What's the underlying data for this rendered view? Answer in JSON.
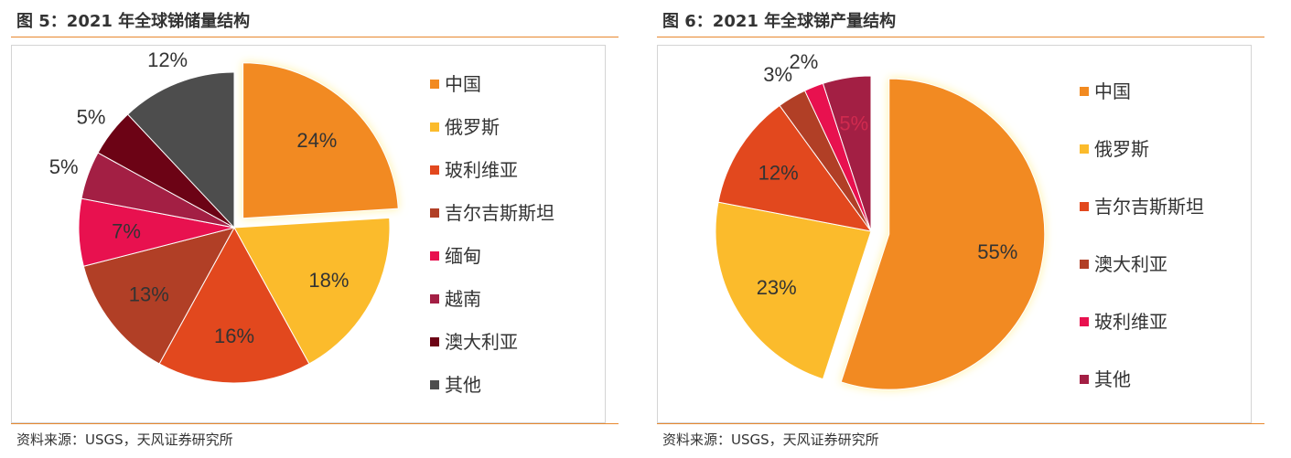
{
  "figures": [
    {
      "title": "图 5：2021 年全球锑储量结构",
      "source": "资料来源：USGS，天风证券研究所"
    },
    {
      "title": "图 6：2021 年全球锑产量结构",
      "source": "资料来源：USGS，天风证券研究所"
    }
  ],
  "chart_data": [
    {
      "type": "pie",
      "title": "",
      "categories": [
        "中国",
        "俄罗斯",
        "玻利维亚",
        "吉尔吉斯斯坦",
        "缅甸",
        "越南",
        "澳大利亚",
        "其他"
      ],
      "values": [
        24,
        18,
        16,
        13,
        7,
        5,
        5,
        12
      ],
      "labels": [
        "24%",
        "18%",
        "16%",
        "13%",
        "7%",
        "5%",
        "5%",
        "12%"
      ],
      "colors": [
        "#f28a20",
        "#fbbb2c",
        "#e2481e",
        "#b13f26",
        "#e8114f",
        "#a31f44",
        "#6c0315",
        "#4d4d4d"
      ],
      "label_colors": [
        "#333333",
        "#333333",
        "#333333",
        "#333333",
        "#333333",
        "#333333",
        "#333333",
        "#333333"
      ],
      "exploded": [
        true,
        false,
        false,
        false,
        false,
        false,
        false,
        false
      ],
      "start_angle_deg": 0,
      "legend_position": "right"
    },
    {
      "type": "pie",
      "title": "",
      "categories": [
        "中国",
        "俄罗斯",
        "吉尔吉斯斯坦",
        "澳大利亚",
        "玻利维亚",
        "其他"
      ],
      "values": [
        55,
        23,
        12,
        3,
        2,
        5
      ],
      "labels": [
        "55%",
        "23%",
        "12%",
        "3%",
        "2%",
        "5%"
      ],
      "colors": [
        "#f28a20",
        "#fbbb2c",
        "#e2481e",
        "#b13f26",
        "#e8114f",
        "#a31f44"
      ],
      "label_colors": [
        "#333333",
        "#333333",
        "#333333",
        "#333333",
        "#333333",
        "#d12a4f"
      ],
      "exploded": [
        true,
        false,
        false,
        false,
        false,
        false
      ],
      "start_angle_deg": 0,
      "legend_position": "right"
    }
  ]
}
